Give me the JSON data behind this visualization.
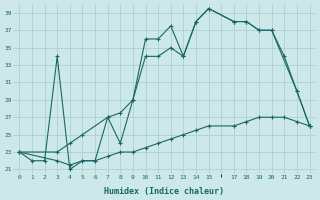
{
  "xlabel": "Humidex (Indice chaleur)",
  "bg_color": "#cce8e8",
  "grid_color": "#aacccc",
  "line_color": "#1a6666",
  "xlim": [
    -0.5,
    23.5
  ],
  "ylim": [
    20.5,
    40.0
  ],
  "xticks": [
    0,
    1,
    2,
    3,
    4,
    5,
    6,
    7,
    8,
    9,
    10,
    11,
    12,
    13,
    14,
    15,
    17,
    18,
    19,
    20,
    21,
    22,
    23
  ],
  "yticks": [
    21,
    23,
    25,
    27,
    29,
    31,
    33,
    35,
    37,
    39
  ],
  "line1_x": [
    0,
    1,
    2,
    3,
    4,
    5,
    6,
    7,
    8,
    9,
    10,
    11,
    12,
    13,
    14,
    15,
    17,
    18,
    19,
    20,
    21,
    22,
    23
  ],
  "line1_y": [
    23,
    22,
    22,
    34,
    21,
    22,
    22,
    27,
    24,
    29,
    36,
    36,
    37.5,
    34,
    38,
    39.5,
    38,
    38,
    37,
    37,
    34,
    30,
    26
  ],
  "line2_x": [
    0,
    3,
    4,
    5,
    7,
    8,
    9,
    10,
    11,
    12,
    13,
    14,
    15,
    17,
    18,
    19,
    20,
    22,
    23
  ],
  "line2_y": [
    23,
    23,
    24,
    25,
    27,
    27.5,
    29,
    34,
    34,
    35,
    34,
    38,
    39.5,
    38,
    38,
    37,
    37,
    30,
    26
  ],
  "line3_x": [
    0,
    3,
    4,
    5,
    6,
    7,
    8,
    9,
    10,
    11,
    12,
    13,
    14,
    15,
    17,
    18,
    19,
    20,
    21,
    22,
    23
  ],
  "line3_y": [
    23,
    22,
    21.5,
    22,
    22,
    22.5,
    23,
    23,
    23.5,
    24,
    24.5,
    25,
    25.5,
    26,
    26,
    26.5,
    27,
    27,
    27,
    26.5,
    26
  ]
}
